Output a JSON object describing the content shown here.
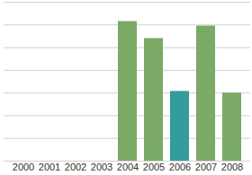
{
  "chart_data": {
    "type": "bar",
    "categories": [
      "2000",
      "2001",
      "2002",
      "2003",
      "2004",
      "2005",
      "2006",
      "2007",
      "2008"
    ],
    "values": [
      null,
      null,
      null,
      null,
      6.15,
      5.4,
      3.07,
      5.95,
      3.0
    ],
    "colors": [
      "#7aaa65",
      "#7aaa65",
      "#7aaa65",
      "#7aaa65",
      "#7aaa65",
      "#7aaa65",
      "#339c9c",
      "#7aaa65",
      "#7aaa65"
    ],
    "ylim": [
      0,
      7
    ],
    "yticks": [
      0,
      1,
      2,
      3,
      4,
      5,
      6,
      7
    ],
    "grid": true,
    "tick_labels": "x"
  }
}
